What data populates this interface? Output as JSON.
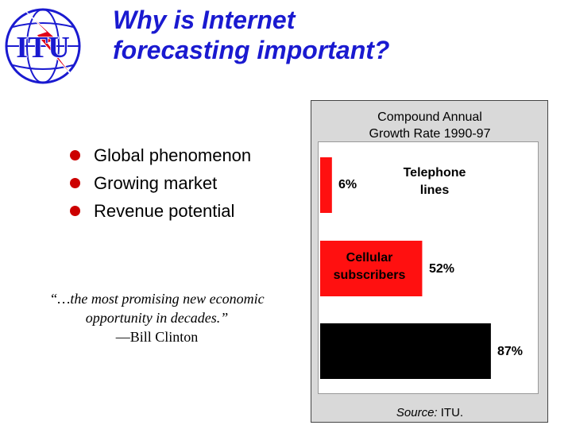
{
  "slide": {
    "title_line1": "Why is Internet",
    "title_line2": "forecasting important?",
    "logo_text": "ITU",
    "bullets": [
      "Global phenomenon",
      "Growing market",
      "Revenue potential"
    ],
    "quote": "“…the most promising new economic opportunity in decades.”",
    "quote_author": "—Bill Clinton"
  },
  "chart_data": {
    "type": "bar",
    "orientation": "horizontal",
    "title_line1": "Compound Annual",
    "title_line2": "Growth Rate 1990-97",
    "categories": [
      "Telephone lines",
      "Cellular subscribers",
      ""
    ],
    "values": [
      6,
      52,
      87
    ],
    "value_labels": [
      "6%",
      "52%",
      "87%"
    ],
    "xlim": [
      0,
      100
    ],
    "grid": false,
    "colors": [
      "#ff1010",
      "#ff1010",
      "#000000"
    ],
    "source_prefix": "Source:",
    "source_value": "ITU."
  },
  "colors": {
    "title": "#1a1ad0",
    "bullet": "#cc0000",
    "logo_blue": "#1a1ad0",
    "logo_red": "#e0001a"
  }
}
